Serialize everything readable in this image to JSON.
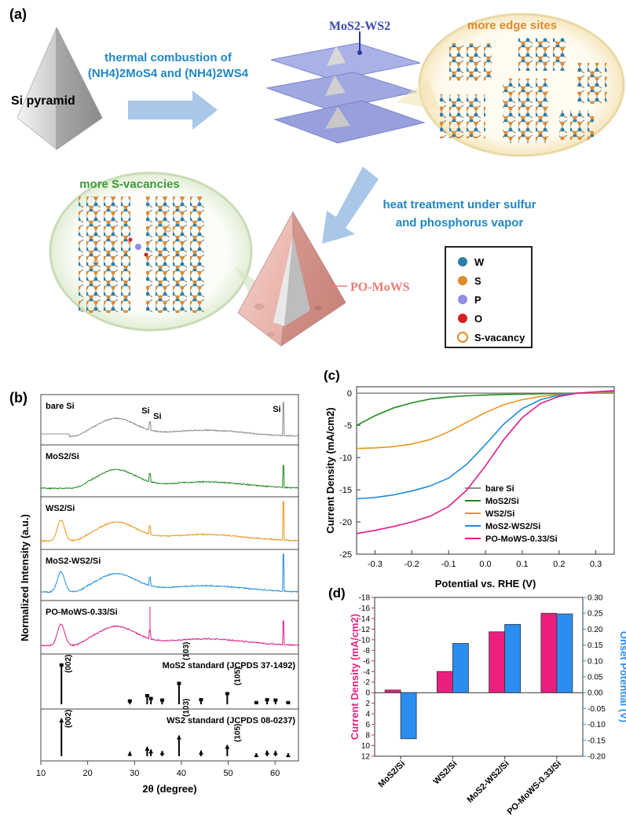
{
  "panel_a": {
    "label": "(a)",
    "si_pyramid": "Si pyramid",
    "step1_line1": "thermal combustion of",
    "step1_line2": "(NH4)2MoS4 and (NH4)2WS4",
    "mos2_ws2": "MoS2-WS2",
    "more_edge_sites": "more edge sites",
    "more_s_vacancies": "more S-vacancies",
    "step2_line1": "heat treatment under sulfur",
    "step2_line2": "and phosphorus vapor",
    "po_mows": "PO-MoWS",
    "legend": [
      {
        "label": "W",
        "color": "#2e7fa6"
      },
      {
        "label": "S",
        "color": "#e08a2c"
      },
      {
        "label": "P",
        "color": "#8e8ee6"
      },
      {
        "label": "O",
        "color": "#d62020"
      },
      {
        "label": "S-vacancy",
        "color": "#e08a2c"
      }
    ]
  },
  "panel_b": {
    "label": "(b)",
    "ylabel": "Normalized Intensity (a.u.)",
    "xlabel": "2θ (degree)",
    "xticks": [
      "10",
      "20",
      "30",
      "40",
      "50",
      "60"
    ],
    "traces": [
      {
        "name": "bare Si",
        "color": "#8c8c8c"
      },
      {
        "name": "MoS2/Si",
        "color": "#1e8c1e"
      },
      {
        "name": "WS2/Si",
        "color": "#e8951e"
      },
      {
        "name": "MoS2-WS2/Si",
        "color": "#1e8cdc"
      },
      {
        "name": "PO-MoWS-0.33/Si",
        "color": "#dc1e8c"
      }
    ],
    "si_peak_labels": [
      "Si",
      "Si",
      "Si"
    ],
    "ref_mos2": "MoS2 standard (JCPDS 37-1492)",
    "ref_ws2": "WS2 standard (JCPDS 08-0237)",
    "miller_mos2": [
      "(002)",
      "(103)",
      "(105)"
    ],
    "miller_ws2": [
      "(002)",
      "(103)",
      "(105)"
    ]
  },
  "chart_data": [
    {
      "type": "line",
      "title": "(c)",
      "xlabel": "Potential vs. RHE (V)",
      "ylabel": "Current Density (mA/cm2)",
      "xlim": [
        -0.35,
        0.35
      ],
      "ylim": [
        -25,
        1
      ],
      "xticks": [
        "-0.3",
        "-0.2",
        "-0.1",
        "0.0",
        "0.1",
        "0.2",
        "0.3"
      ],
      "yticks": [
        "0",
        "-5",
        "-10",
        "-15",
        "-20",
        "-25"
      ],
      "x": [
        -0.35,
        -0.3,
        -0.25,
        -0.2,
        -0.15,
        -0.1,
        -0.05,
        0.0,
        0.05,
        0.1,
        0.15,
        0.2,
        0.25,
        0.3,
        0.35
      ],
      "series": [
        {
          "name": "bare Si",
          "color": "#8c8c8c",
          "values": [
            0,
            0,
            0,
            0,
            0,
            0,
            0,
            0,
            0,
            0,
            0,
            0,
            0,
            0,
            0
          ]
        },
        {
          "name": "MoS2/Si",
          "color": "#1e8c1e",
          "values": [
            -5.0,
            -3.5,
            -2.3,
            -1.5,
            -0.9,
            -0.6,
            -0.4,
            -0.3,
            -0.2,
            -0.15,
            -0.1,
            -0.05,
            0,
            0.1,
            0.2
          ]
        },
        {
          "name": "WS2/Si",
          "color": "#e8951e",
          "values": [
            -8.6,
            -8.5,
            -8.3,
            -7.9,
            -7.2,
            -6.0,
            -4.5,
            -3.0,
            -1.8,
            -1.0,
            -0.5,
            -0.2,
            0,
            0.1,
            0.2
          ]
        },
        {
          "name": "MoS2-WS2/Si",
          "color": "#1e8cdc",
          "values": [
            -16.4,
            -16.2,
            -15.8,
            -15.2,
            -14.4,
            -13.2,
            -11.0,
            -8.0,
            -4.8,
            -2.4,
            -1.0,
            -0.3,
            0,
            0.2,
            0.3
          ]
        },
        {
          "name": "PO-MoWS-0.33/Si",
          "color": "#dc1e8c",
          "values": [
            -21.8,
            -21.3,
            -20.7,
            -20.0,
            -19.1,
            -17.6,
            -15.0,
            -11.3,
            -7.2,
            -3.8,
            -1.6,
            -0.5,
            0,
            0.2,
            0.4
          ]
        }
      ]
    },
    {
      "type": "bar",
      "title": "(d)",
      "categories": [
        "MoS2/Si",
        "WS2/Si",
        "MoS2-WS2/Si",
        "PO-MoWS-0.33/Si"
      ],
      "ylabel_left": "Current Density (mA/cm2)",
      "ylabel_right": "Onset Potential (V)",
      "left_ticks": [
        "-18",
        "-16",
        "-14",
        "-12",
        "-10",
        "-8",
        "-6",
        "-4",
        "-2",
        "0",
        "2",
        "4",
        "6",
        "8",
        "10",
        "12"
      ],
      "right_ticks": [
        "0.30",
        "0.25",
        "0.20",
        "0.15",
        "0.10",
        "0.05",
        "0.00",
        "-0.05",
        "-0.10",
        "-0.15",
        "-0.20"
      ],
      "series": [
        {
          "name": "Current Density",
          "color": "#ec1e7e",
          "axis": "left",
          "values": [
            -0.5,
            -4.0,
            -11.5,
            -15.0
          ]
        },
        {
          "name": "Onset Potential",
          "color": "#2a8ef0",
          "axis": "right",
          "values": [
            -0.145,
            0.155,
            0.215,
            0.248
          ]
        }
      ],
      "ylim_left": [
        12,
        -18
      ],
      "ylim_right": [
        -0.2,
        0.3
      ]
    }
  ]
}
